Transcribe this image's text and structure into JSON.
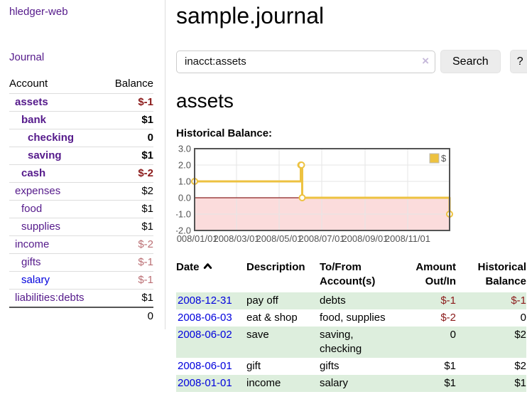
{
  "sidebar": {
    "app_title": "hledger-web",
    "journal_link": "Journal",
    "accounts_table": {
      "headers": {
        "account": "Account",
        "balance": "Balance"
      },
      "rows": [
        {
          "name": "assets",
          "depth": 1,
          "bold": true,
          "balance": "$-1",
          "balance_style": "negative"
        },
        {
          "name": "bank",
          "depth": 2,
          "bold": true,
          "balance": "$1",
          "balance_style": "normal"
        },
        {
          "name": "checking",
          "depth": 3,
          "bold": true,
          "balance": "0",
          "balance_style": "normal"
        },
        {
          "name": "saving",
          "depth": 3,
          "bold": true,
          "balance": "$1",
          "balance_style": "normal"
        },
        {
          "name": "cash",
          "depth": 2,
          "bold": true,
          "balance": "$-2",
          "balance_style": "negative"
        },
        {
          "name": "expenses",
          "depth": 1,
          "bold": false,
          "balance": "$2",
          "balance_style": "normal"
        },
        {
          "name": "food",
          "depth": 2,
          "bold": false,
          "balance": "$1",
          "balance_style": "normal"
        },
        {
          "name": "supplies",
          "depth": 2,
          "bold": false,
          "balance": "$1",
          "balance_style": "normal"
        },
        {
          "name": "income",
          "depth": 1,
          "bold": false,
          "balance": "$-2",
          "balance_style": "negative-dim"
        },
        {
          "name": "gifts",
          "depth": 2,
          "bold": false,
          "balance": "$-1",
          "balance_style": "negative-dim"
        },
        {
          "name": "salary",
          "depth": 2,
          "bold": false,
          "balance": "$-1",
          "balance_style": "negative-dim",
          "link_style": "blue"
        },
        {
          "name": "liabilities:debts",
          "depth": 1,
          "bold": false,
          "balance": "$1",
          "balance_style": "normal"
        }
      ],
      "total": "0"
    }
  },
  "header": {
    "title": "sample.journal"
  },
  "search": {
    "query": "inacct:assets",
    "clear_icon": "×",
    "search_button": "Search",
    "help_button": "?"
  },
  "account_page": {
    "heading": "assets",
    "chart_label": "Historical Balance:"
  },
  "chart_data": {
    "type": "line",
    "step": true,
    "title": "Historical Balance",
    "x_unit": "days since 2008-01-01",
    "xlim_days": [
      0,
      365
    ],
    "ylim": [
      -2,
      3
    ],
    "grid": true,
    "legend_position": "top-right",
    "series": [
      {
        "name": "$",
        "color": "#edc240",
        "points": [
          [
            0,
            1
          ],
          [
            152,
            2
          ],
          [
            153,
            2
          ],
          [
            154,
            0
          ],
          [
            365,
            -1
          ]
        ]
      }
    ],
    "x_ticks": [
      {
        "day": 0,
        "label": "2008/01/01"
      },
      {
        "day": 60,
        "label": "2008/03/01"
      },
      {
        "day": 121,
        "label": "2008/05/01"
      },
      {
        "day": 182,
        "label": "2008/07/01"
      },
      {
        "day": 244,
        "label": "2008/09/01"
      },
      {
        "day": 305,
        "label": "2008/11/01"
      }
    ],
    "y_ticks": [
      {
        "value": 3,
        "label": "3.0"
      },
      {
        "value": 2,
        "label": "2.0"
      },
      {
        "value": 1,
        "label": "1.0"
      },
      {
        "value": 0,
        "label": "0.0"
      },
      {
        "value": -1,
        "label": "-1.0"
      },
      {
        "value": -2,
        "label": "-2.0"
      }
    ],
    "negative_region_color": "#fbdcdc",
    "zero_line_color": "#8b2020",
    "gridline_color": "#e6e6e6",
    "border_color": "#545454",
    "tick_label_color": "#545454"
  },
  "register": {
    "headers": {
      "date": "Date",
      "description": "Description",
      "accounts": "To/From\nAccount(s)",
      "amount": "Amount\nOut/In",
      "balance": "Historical\nBalance"
    },
    "sort": {
      "column": "date",
      "direction": "ascending"
    },
    "rows": [
      {
        "date": "2008-12-31",
        "description": "pay off",
        "accounts": "debts",
        "amount": "$-1",
        "amount_style": "negative",
        "balance": "$-1",
        "balance_style": "negative",
        "shaded": true
      },
      {
        "date": "2008-06-03",
        "description": "eat & shop",
        "accounts": "food, supplies",
        "amount": "$-2",
        "amount_style": "negative",
        "balance": "0",
        "balance_style": "normal",
        "shaded": false
      },
      {
        "date": "2008-06-02",
        "description": "save",
        "accounts": "saving,\nchecking",
        "amount": "0",
        "amount_style": "normal",
        "balance": "$2",
        "balance_style": "normal",
        "shaded": true
      },
      {
        "date": "2008-06-01",
        "description": "gift",
        "accounts": "gifts",
        "amount": "$1",
        "amount_style": "normal",
        "balance": "$2",
        "balance_style": "normal",
        "shaded": false
      },
      {
        "date": "2008-01-01",
        "description": "income",
        "accounts": "salary",
        "amount": "$1",
        "amount_style": "normal",
        "balance": "$1",
        "balance_style": "normal",
        "shaded": true
      }
    ]
  },
  "colors": {
    "link_purple": "#551a8b",
    "link_blue": "#0000dd",
    "negative_strong": "#8b1a1a",
    "negative_dim": "#bb6f74",
    "row_stripe_green": "#ddeedd",
    "sidebar_divider": "#dddddd",
    "series_yellow": "#edc240"
  }
}
